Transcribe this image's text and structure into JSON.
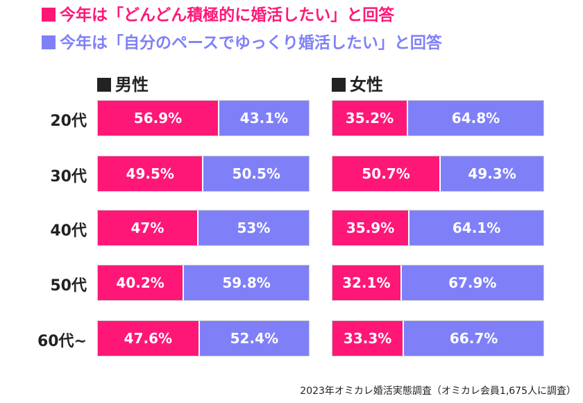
{
  "legend": [
    {
      "label": "今年は「どんどん積極的に婚活したい」と回答",
      "color": "#ff1778"
    },
    {
      "label": "今年は「自分のペースでゆっくり婚活したい」と回答",
      "color": "#7f80f8"
    }
  ],
  "panels": {
    "male_title": "男性",
    "female_title": "女性"
  },
  "source": "2023年オミカレ婚活実態調査（オミカレ会員1,675人に調査）",
  "chart_data": {
    "type": "bar",
    "stacked": true,
    "orientation": "horizontal",
    "percent_stacked": true,
    "categories": [
      "20代",
      "30代",
      "40代",
      "50代",
      "60代~"
    ],
    "panels": [
      {
        "name": "男性",
        "series": [
          {
            "name": "今年は「どんどん積極的に婚活したい」と回答",
            "values": [
              56.9,
              49.5,
              47,
              40.2,
              47.6
            ],
            "labels": [
              "56.9%",
              "49.5%",
              "47%",
              "40.2%",
              "47.6%"
            ]
          },
          {
            "name": "今年は「自分のペースでゆっくり婚活したい」と回答",
            "values": [
              43.1,
              50.5,
              53,
              59.8,
              52.4
            ],
            "labels": [
              "43.1%",
              "50.5%",
              "53%",
              "59.8%",
              "52.4%"
            ]
          }
        ]
      },
      {
        "name": "女性",
        "series": [
          {
            "name": "今年は「どんどん積極的に婚活したい」と回答",
            "values": [
              35.2,
              50.7,
              35.9,
              32.1,
              33.3
            ],
            "labels": [
              "35.2%",
              "50.7%",
              "35.9%",
              "32.1%",
              "33.3%"
            ]
          },
          {
            "name": "今年は「自分のペースでゆっくり婚活したい」と回答",
            "values": [
              64.8,
              49.3,
              64.1,
              67.9,
              66.7
            ],
            "labels": [
              "64.8%",
              "49.3%",
              "64.1%",
              "67.9%",
              "66.7%"
            ]
          }
        ]
      }
    ]
  }
}
